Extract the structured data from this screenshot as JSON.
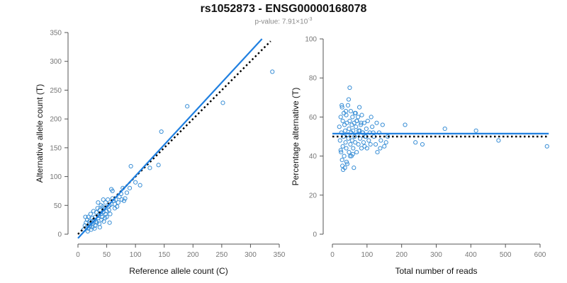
{
  "title": "rs1052873 - ENSG00000168078",
  "subtitle": {
    "prefix": "p-value: 7.91×10",
    "exponent": "-3"
  },
  "colors": {
    "points": "#3a8fd6",
    "fit": "#1f7fe0",
    "reference": "#000000"
  },
  "chart_data": [
    {
      "type": "scatter",
      "xlabel": "Reference allele count (C)",
      "ylabel": "Alternative allele count (T)",
      "xlim": [
        0,
        350
      ],
      "ylim": [
        0,
        350
      ],
      "xticks": [
        0,
        50,
        100,
        150,
        200,
        250,
        300,
        350
      ],
      "yticks": [
        0,
        50,
        100,
        150,
        200,
        250,
        300,
        350
      ],
      "fit_line": {
        "x": [
          0,
          320
        ],
        "y": [
          -7,
          339
        ]
      },
      "reference_line": {
        "x": [
          0,
          335
        ],
        "y": [
          0,
          335
        ]
      },
      "points": [
        [
          10,
          8
        ],
        [
          12,
          15
        ],
        [
          14,
          20
        ],
        [
          15,
          12
        ],
        [
          16,
          25
        ],
        [
          18,
          10
        ],
        [
          18,
          30
        ],
        [
          20,
          18
        ],
        [
          20,
          22
        ],
        [
          21,
          14
        ],
        [
          22,
          35
        ],
        [
          24,
          20
        ],
        [
          25,
          28
        ],
        [
          25,
          12
        ],
        [
          26,
          18
        ],
        [
          27,
          40
        ],
        [
          28,
          25
        ],
        [
          30,
          30
        ],
        [
          30,
          15
        ],
        [
          31,
          22
        ],
        [
          32,
          38
        ],
        [
          33,
          20
        ],
        [
          34,
          45
        ],
        [
          35,
          28
        ],
        [
          36,
          32
        ],
        [
          37,
          18
        ],
        [
          38,
          42
        ],
        [
          40,
          35
        ],
        [
          40,
          50
        ],
        [
          41,
          25
        ],
        [
          42,
          30
        ],
        [
          43,
          48
        ],
        [
          44,
          38
        ],
        [
          45,
          22
        ],
        [
          46,
          45
        ],
        [
          48,
          55
        ],
        [
          48,
          35
        ],
        [
          50,
          40
        ],
        [
          50,
          30
        ],
        [
          52,
          60
        ],
        [
          53,
          48
        ],
        [
          55,
          50
        ],
        [
          56,
          35
        ],
        [
          58,
          52
        ],
        [
          60,
          62
        ],
        [
          60,
          75
        ],
        [
          62,
          58
        ],
        [
          64,
          45
        ],
        [
          66,
          60
        ],
        [
          70,
          55
        ],
        [
          72,
          65
        ],
        [
          75,
          70
        ],
        [
          78,
          80
        ],
        [
          80,
          58
        ],
        [
          82,
          62
        ],
        [
          85,
          72
        ],
        [
          90,
          80
        ],
        [
          92,
          118
        ],
        [
          100,
          90
        ],
        [
          108,
          85
        ],
        [
          125,
          115
        ],
        [
          140,
          120
        ],
        [
          145,
          178
        ],
        [
          190,
          222
        ],
        [
          252,
          228
        ],
        [
          338,
          282
        ],
        [
          13,
          30
        ],
        [
          17,
          5
        ],
        [
          23,
          8
        ],
        [
          29,
          10
        ],
        [
          35,
          55
        ],
        [
          38,
          12
        ],
        [
          44,
          60
        ],
        [
          47,
          28
        ],
        [
          54,
          42
        ],
        [
          58,
          78
        ],
        [
          64,
          52
        ],
        [
          68,
          48
        ],
        [
          76,
          60
        ],
        [
          55,
          20
        ]
      ]
    },
    {
      "type": "scatter",
      "xlabel": "Total number of reads",
      "ylabel": "Percentage alternative (T)",
      "xlim": [
        0,
        600
      ],
      "ylim": [
        0,
        100
      ],
      "xticks": [
        0,
        100,
        200,
        300,
        400,
        500,
        600
      ],
      "yticks": [
        0,
        20,
        40,
        60,
        80,
        100
      ],
      "fit_line": {
        "x": [
          0,
          625
        ],
        "y": [
          51.5,
          51.5
        ]
      },
      "reference_line": {
        "x": [
          0,
          625
        ],
        "y": [
          50,
          50
        ]
      },
      "points": [
        [
          20,
          55
        ],
        [
          22,
          48
        ],
        [
          24,
          60
        ],
        [
          25,
          42
        ],
        [
          26,
          52
        ],
        [
          28,
          65
        ],
        [
          28,
          38
        ],
        [
          30,
          58
        ],
        [
          30,
          45
        ],
        [
          32,
          50
        ],
        [
          33,
          62
        ],
        [
          34,
          40
        ],
        [
          35,
          56
        ],
        [
          36,
          34
        ],
        [
          37,
          53
        ],
        [
          38,
          47
        ],
        [
          40,
          61
        ],
        [
          40,
          44
        ],
        [
          42,
          57
        ],
        [
          43,
          36
        ],
        [
          44,
          51
        ],
        [
          45,
          66
        ],
        [
          46,
          49
        ],
        [
          48,
          54
        ],
        [
          48,
          42
        ],
        [
          50,
          75
        ],
        [
          50,
          58
        ],
        [
          52,
          46
        ],
        [
          53,
          63
        ],
        [
          54,
          52
        ],
        [
          55,
          40
        ],
        [
          56,
          56
        ],
        [
          57,
          48
        ],
        [
          58,
          60
        ],
        [
          60,
          53
        ],
        [
          60,
          44
        ],
        [
          62,
          34
        ],
        [
          63,
          57
        ],
        [
          64,
          50
        ],
        [
          65,
          62
        ],
        [
          66,
          47
        ],
        [
          68,
          55
        ],
        [
          70,
          42
        ],
        [
          70,
          58
        ],
        [
          72,
          51
        ],
        [
          74,
          60
        ],
        [
          75,
          46
        ],
        [
          76,
          53
        ],
        [
          78,
          65
        ],
        [
          80,
          49
        ],
        [
          82,
          56
        ],
        [
          84,
          44
        ],
        [
          85,
          61
        ],
        [
          88,
          52
        ],
        [
          90,
          47
        ],
        [
          92,
          57
        ],
        [
          95,
          50
        ],
        [
          98,
          54
        ],
        [
          100,
          44
        ],
        [
          102,
          58
        ],
        [
          105,
          48
        ],
        [
          108,
          52
        ],
        [
          112,
          60
        ],
        [
          115,
          55
        ],
        [
          120,
          50
        ],
        [
          125,
          46
        ],
        [
          130,
          42
        ],
        [
          135,
          52
        ],
        [
          140,
          48
        ],
        [
          145,
          56
        ],
        [
          150,
          45
        ],
        [
          155,
          47
        ],
        [
          160,
          50
        ],
        [
          210,
          56
        ],
        [
          240,
          47
        ],
        [
          260,
          46
        ],
        [
          325,
          54
        ],
        [
          415,
          53
        ],
        [
          480,
          48
        ],
        [
          620,
          45
        ],
        [
          24,
          43
        ],
        [
          27,
          66
        ],
        [
          29,
          35
        ],
        [
          31,
          33
        ],
        [
          39,
          63
        ],
        [
          41,
          37
        ],
        [
          47,
          69
        ],
        [
          51,
          40
        ],
        [
          59,
          41
        ],
        [
          67,
          62
        ],
        [
          71,
          58
        ],
        [
          79,
          53
        ],
        [
          83,
          57
        ],
        [
          87,
          52
        ],
        [
          93,
          45
        ],
        [
          97,
          50
        ],
        [
          110,
          46
        ],
        [
          118,
          52
        ],
        [
          128,
          57
        ],
        [
          138,
          44
        ]
      ]
    }
  ]
}
